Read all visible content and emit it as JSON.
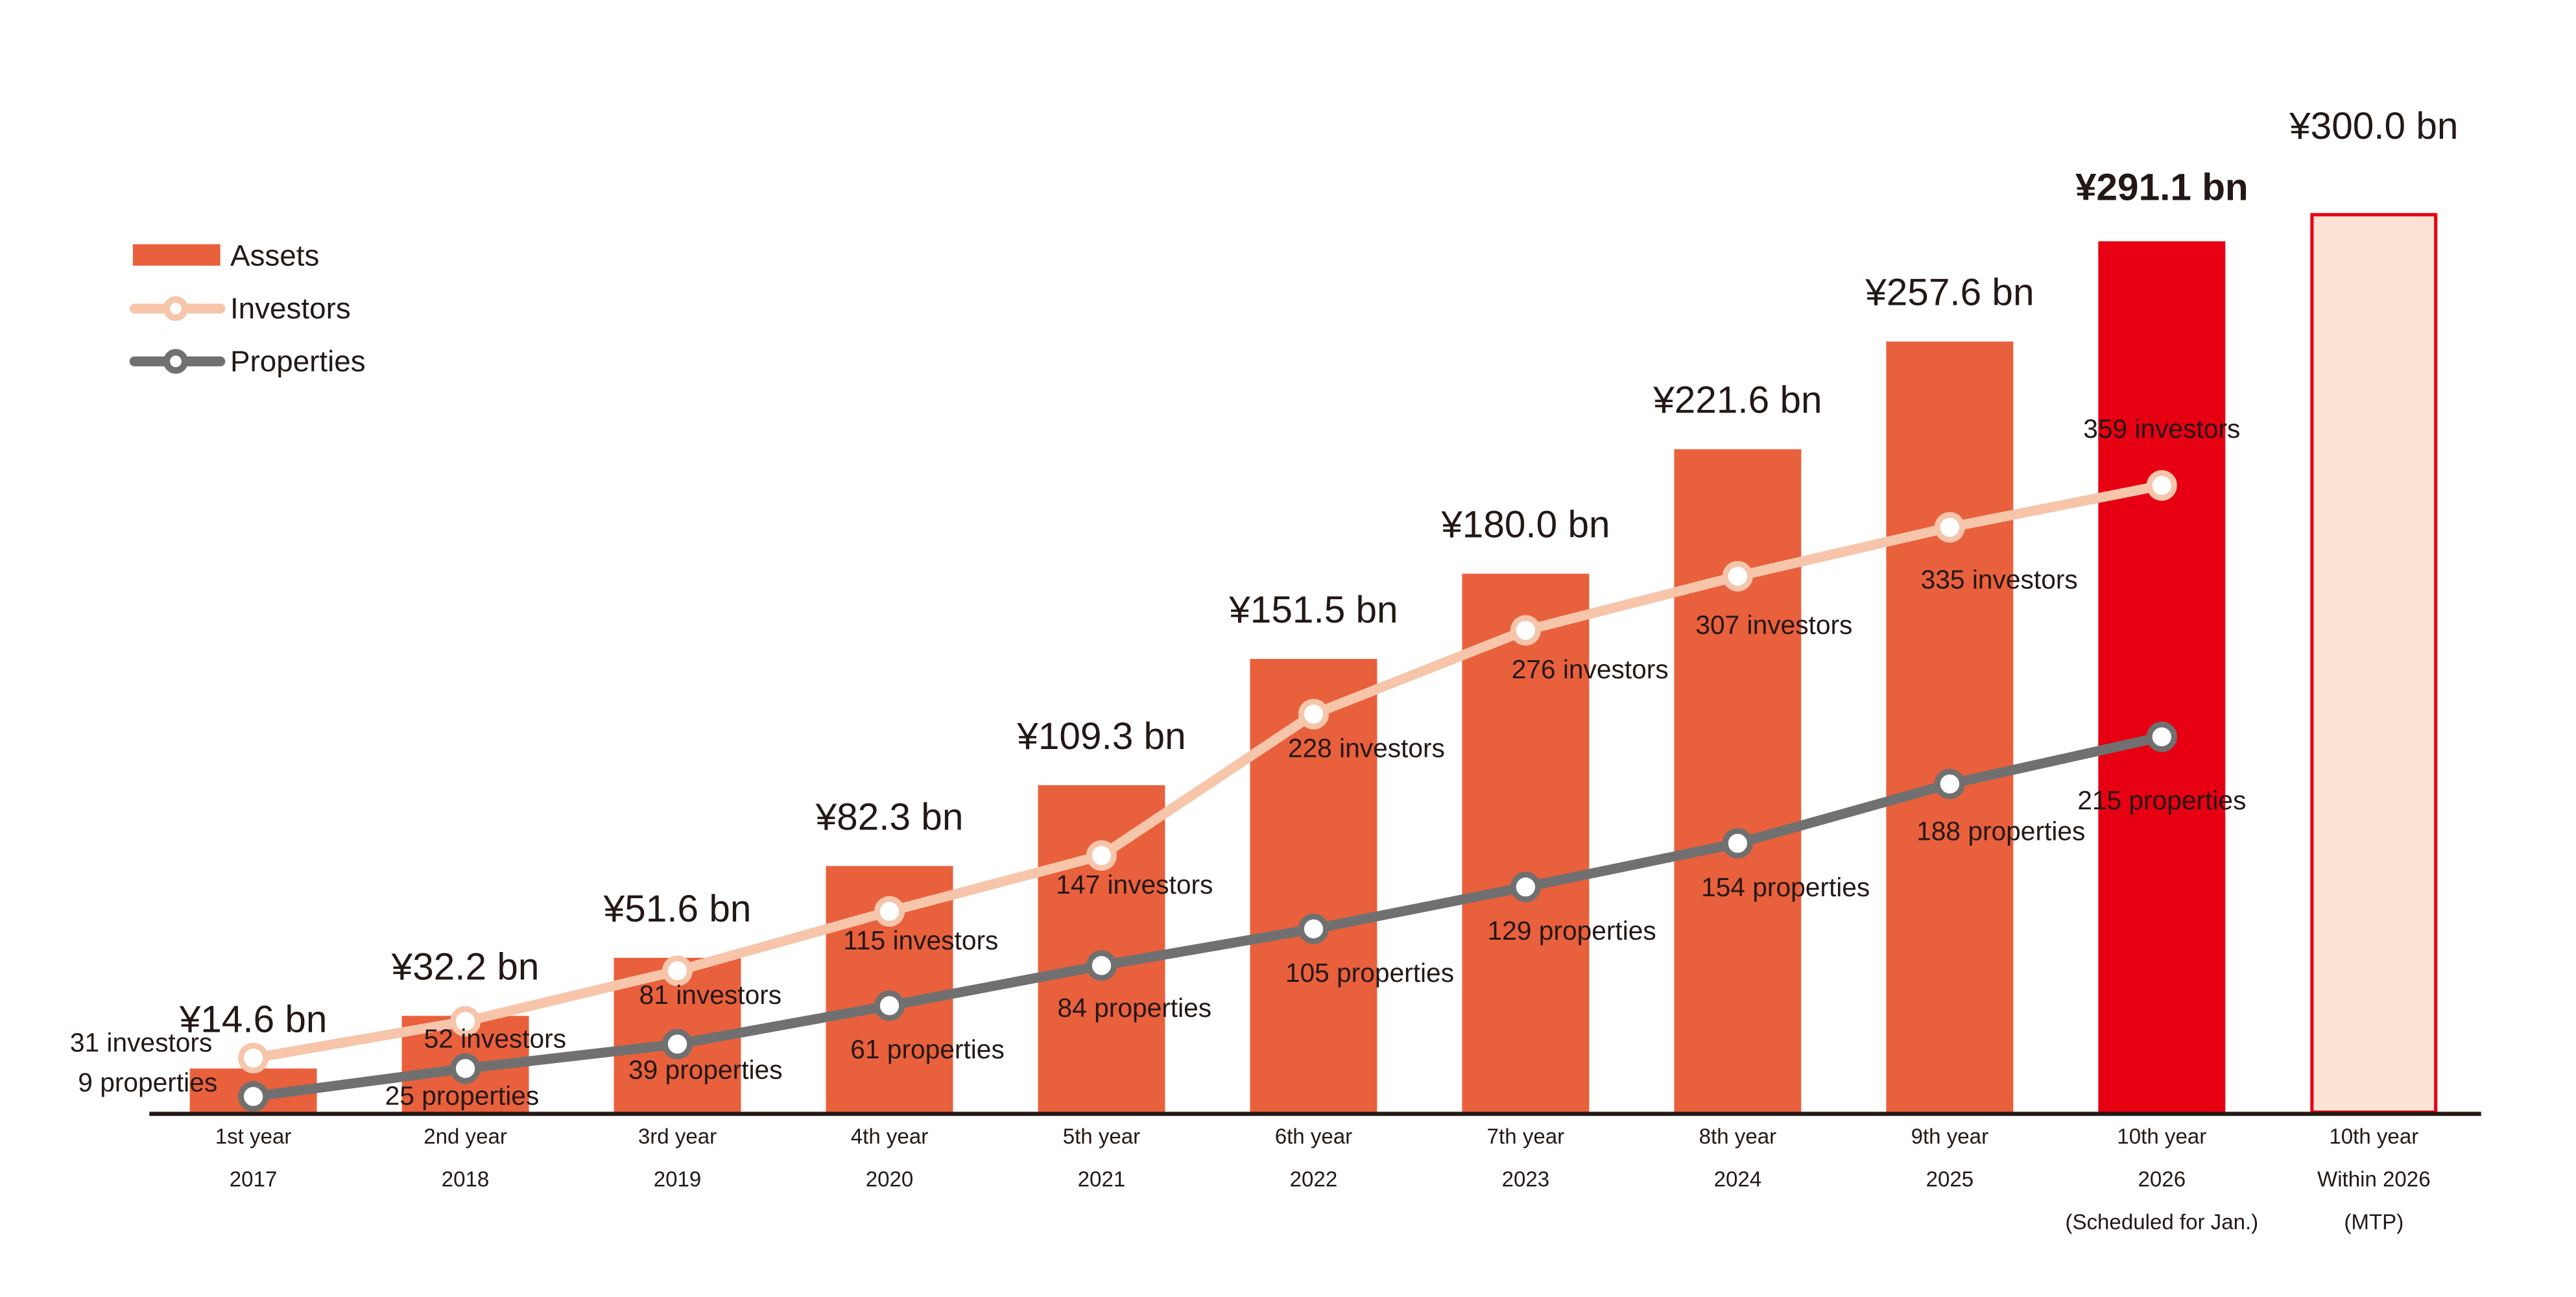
{
  "chart_data": {
    "type": "bar+line",
    "title": "",
    "legend": {
      "placement": "top-left",
      "items": [
        {
          "name": "Assets",
          "kind": "bar",
          "color": "#E9603C"
        },
        {
          "name": "Investors",
          "kind": "line",
          "color": "#F6C5AA"
        },
        {
          "name": "Properties",
          "kind": "line",
          "color": "#707070"
        }
      ]
    },
    "categories": [
      [
        "1st year",
        "2017",
        ""
      ],
      [
        "2nd year",
        "2018",
        ""
      ],
      [
        "3rd year",
        "2019",
        ""
      ],
      [
        "4th year",
        "2020",
        ""
      ],
      [
        "5th year",
        "2021",
        ""
      ],
      [
        "6th year",
        "2022",
        ""
      ],
      [
        "7th year",
        "2023",
        ""
      ],
      [
        "8th year",
        "2024",
        ""
      ],
      [
        "9th year",
        "2025",
        ""
      ],
      [
        "10th year",
        "2026",
        "(Scheduled for Jan.)"
      ],
      [
        "10th year",
        "Within 2026",
        "(MTP)"
      ]
    ],
    "assets": {
      "name": "Assets",
      "unit": "¥ bn",
      "values": [
        14.6,
        32.2,
        51.6,
        82.3,
        109.3,
        151.5,
        180.0,
        221.6,
        257.6,
        291.1,
        300.0
      ],
      "labels": [
        "¥14.6 bn",
        "¥32.2 bn",
        "¥51.6 bn",
        "¥82.3 bn",
        "¥109.3 bn",
        "¥151.5 bn",
        "¥180.0 bn",
        "¥221.6 bn",
        "¥257.6 bn",
        "¥291.1 bn",
        "¥300.0 bn"
      ],
      "colors": [
        "#E9603C",
        "#E9603C",
        "#E9603C",
        "#E9603C",
        "#E9603C",
        "#E9603C",
        "#E9603C",
        "#E9603C",
        "#E9603C",
        "#E60012",
        "#FDE3D6"
      ],
      "highlight_index": 9,
      "target_index": 10,
      "target_border_color": "#E60012"
    },
    "investors": {
      "name": "Investors",
      "values": [
        31,
        52,
        81,
        115,
        147,
        228,
        276,
        307,
        335,
        359
      ],
      "labels": [
        "31 investors",
        "52 investors",
        "81 investors",
        "115 investors",
        "147 investors",
        "228 investors",
        "276 investors",
        "307 investors",
        "335 investors",
        "359 investors"
      ],
      "color": "#F6C5AA"
    },
    "properties": {
      "name": "Properties",
      "values": [
        9,
        25,
        39,
        61,
        84,
        105,
        129,
        154,
        188,
        215
      ],
      "labels": [
        "9 properties",
        "25 properties",
        "39 properties",
        "61 properties",
        "84 properties",
        "105 properties",
        "129 properties",
        "154 properties",
        "188 properties",
        "215 properties"
      ],
      "color": "#707070"
    },
    "grid": false
  }
}
